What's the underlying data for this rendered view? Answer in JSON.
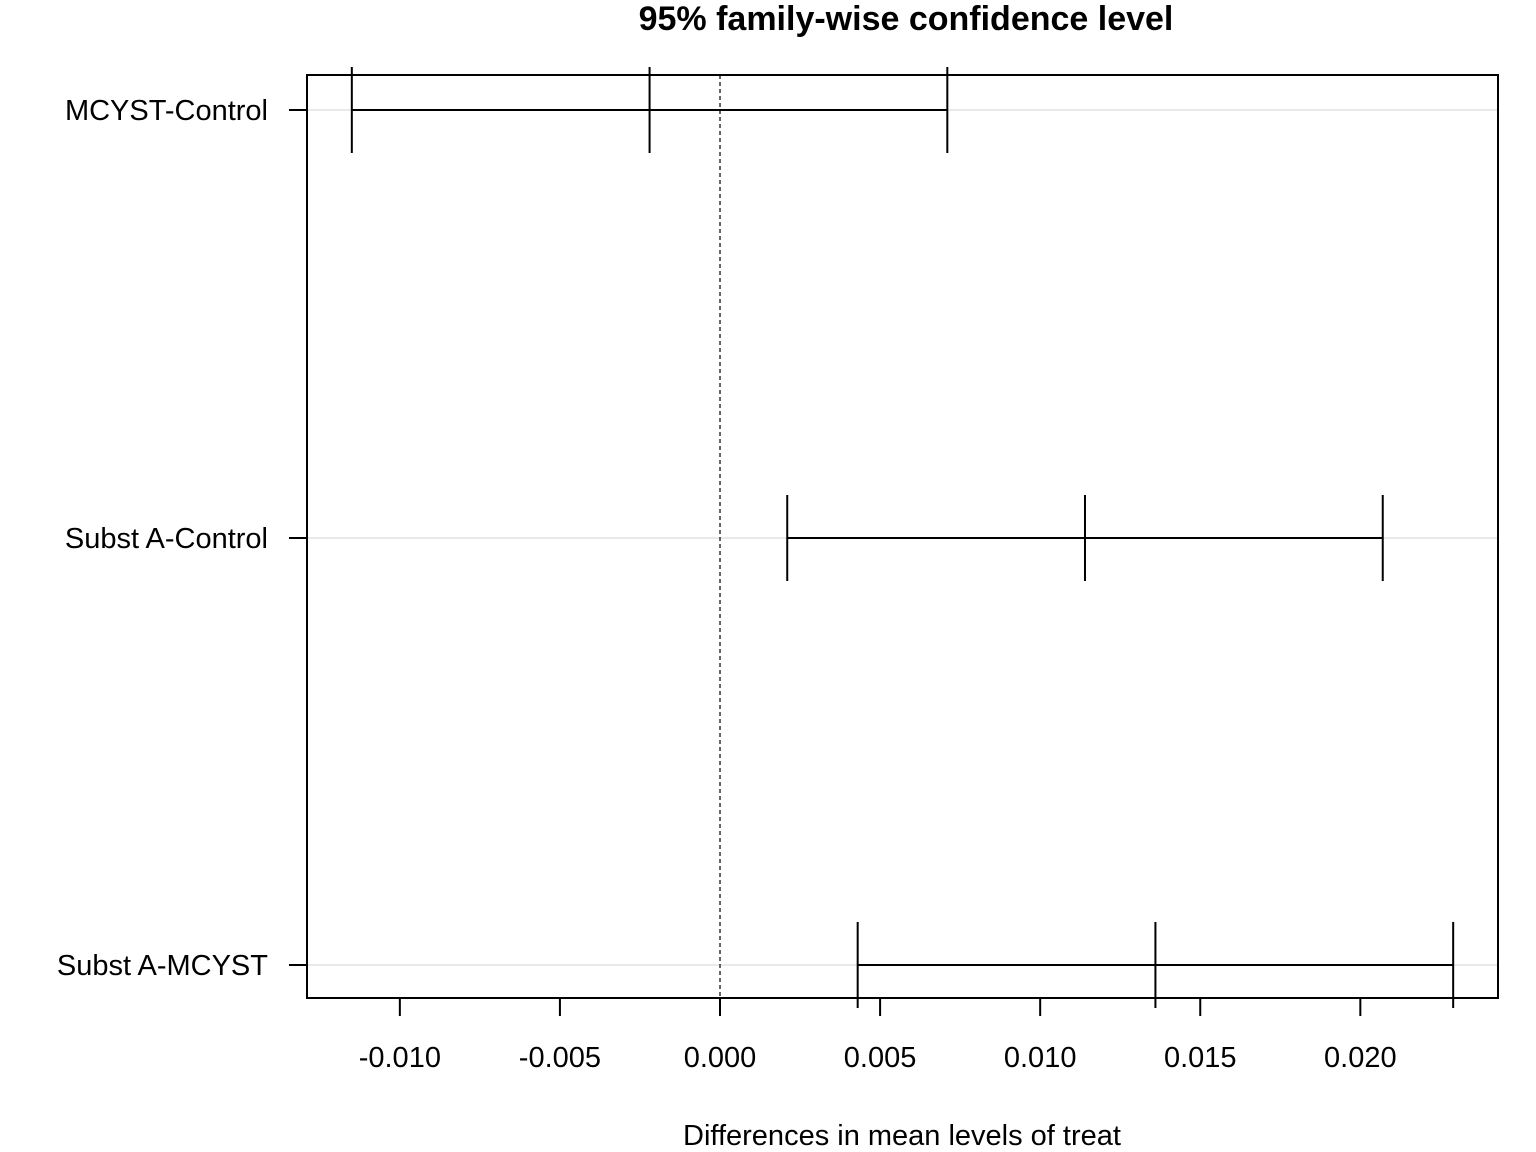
{
  "chart_data": {
    "type": "errorbar",
    "title": "95% family-wise confidence level",
    "xlabel": "Differences in mean levels of treat",
    "ylabel": "",
    "xlim": [
      -0.0129,
      0.0243
    ],
    "xticks": [
      -0.01,
      -0.005,
      0.0,
      0.005,
      0.01,
      0.015,
      0.02
    ],
    "xtick_labels": [
      "-0.010",
      "-0.005",
      "0.000",
      "0.005",
      "0.010",
      "0.015",
      "0.020"
    ],
    "reference_line": 0,
    "grid": "horizontal",
    "comparisons": [
      {
        "label": "MCYST-Control",
        "lwr": -0.0115,
        "diff": -0.0022,
        "upr": 0.0071
      },
      {
        "label": "Subst A-Control",
        "lwr": 0.0021,
        "diff": 0.0114,
        "upr": 0.0207
      },
      {
        "label": "Subst A-MCYST",
        "lwr": 0.0043,
        "diff": 0.0136,
        "upr": 0.0229
      }
    ]
  }
}
